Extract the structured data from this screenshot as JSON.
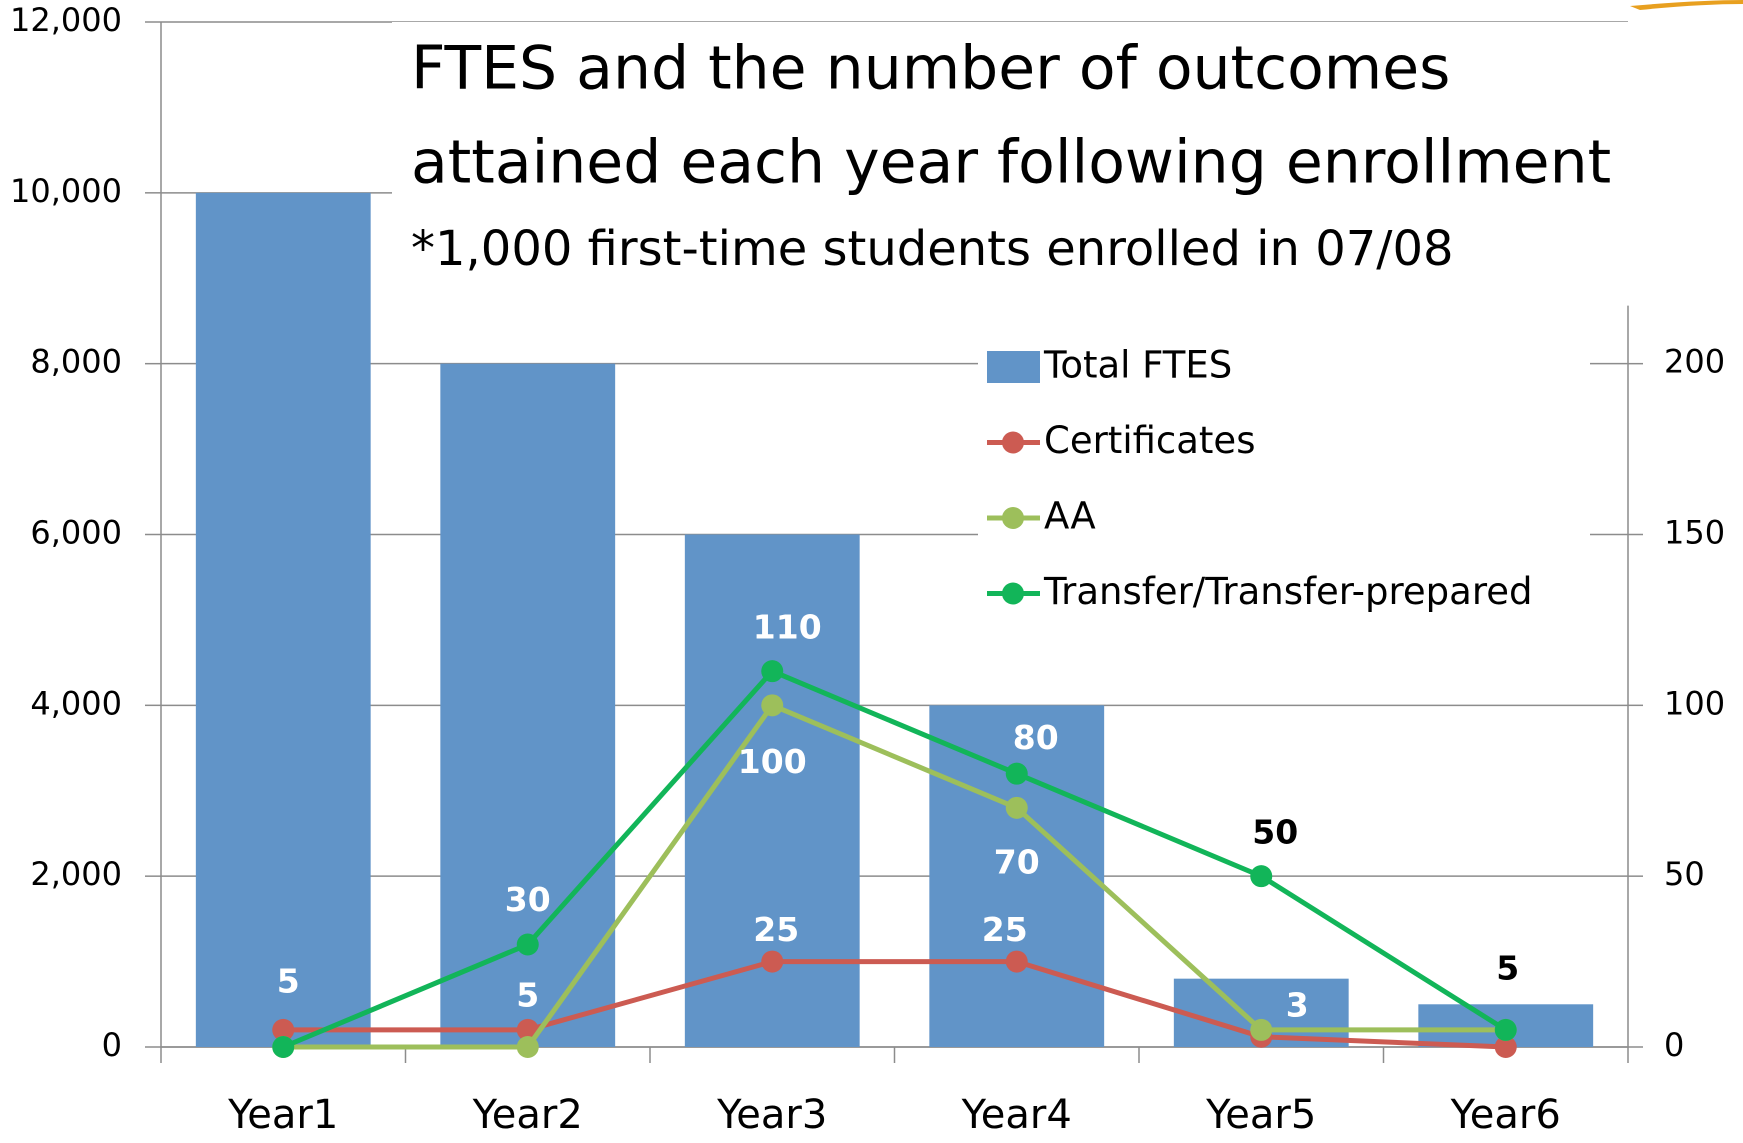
{
  "chart_data": {
    "type": "bar_line",
    "title": "FTES and the number of outcomes",
    "title_line2": "attained each year following enrollment",
    "subtitle": "*1,000 first-time students enrolled in 07/08",
    "categories": [
      "Year1",
      "Year2",
      "Year3",
      "Year4",
      "Year5",
      "Year6"
    ],
    "series": [
      {
        "name": "Total FTES",
        "type": "bar",
        "color": "#6194c8",
        "values": [
          10000,
          8000,
          6000,
          4000,
          800,
          500
        ]
      },
      {
        "name": "Certificates",
        "type": "line",
        "axis": "y2",
        "color": "#cc5b52",
        "values": [
          5,
          5,
          25,
          25,
          3,
          0
        ],
        "value_labels": [
          "5",
          "5",
          "25",
          "25",
          "3",
          null
        ]
      },
      {
        "name": "AA",
        "type": "line",
        "axis": "y2",
        "color": "#9dbf5b",
        "values": [
          0,
          0,
          100,
          70,
          5,
          5
        ],
        "value_labels": [
          null,
          null,
          "100",
          "70",
          null,
          null
        ]
      },
      {
        "name": "Transfer/Transfer-prepared",
        "type": "line",
        "axis": "y2",
        "color": "#12b559",
        "values": [
          0,
          30,
          110,
          80,
          50,
          5
        ],
        "value_labels": [
          null,
          "30",
          "110",
          "80",
          "50",
          "5"
        ]
      }
    ],
    "ylim": [
      0,
      12000
    ],
    "yticks": [
      0,
      {
        "value": 2000,
        "label": "2,000"
      },
      {
        "value": 4000,
        "label": "4,000"
      },
      {
        "value": 6000,
        "label": "6,000"
      },
      {
        "value": 8000,
        "label": "8,000"
      },
      {
        "value": 10000,
        "label": "10,000"
      },
      {
        "value": 12000,
        "label": "12,000"
      }
    ],
    "y2lim": [
      0,
      300
    ],
    "y2ticks": [
      0,
      50,
      100,
      150,
      200
    ],
    "grid": true,
    "legend": "upper right"
  }
}
